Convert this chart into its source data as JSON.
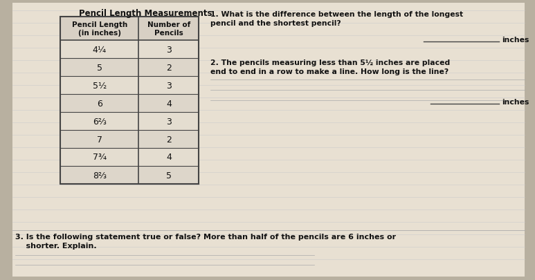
{
  "title": "Pencil Length Measurements",
  "col1_header": "Pencil Length\n(in inches)",
  "col2_header": "Number of\nPencils",
  "table_rows": [
    [
      "4¼",
      "3"
    ],
    [
      "5",
      "2"
    ],
    [
      "5½",
      "3"
    ],
    [
      "6",
      "4"
    ],
    [
      "6⅔",
      "3"
    ],
    [
      "7",
      "2"
    ],
    [
      "7¾",
      "4"
    ],
    [
      "8⅔",
      "5"
    ]
  ],
  "q1_line1": "1. What is the difference between the length of the longest",
  "q1_line2": "pencil and the shortest pencil?",
  "q1_label": "inches",
  "q2_line1": "2. The pencils measuring less than 5½ inches are placed",
  "q2_line2": "end to end in a row to make a line. How long is the line?",
  "q2_label": "inches",
  "q3_line1": "3. Is the following statement true or false? More than half of the pencils are 6 inches or",
  "q3_line2": "    shorter. Explain.",
  "bg_color": "#b8b0a0",
  "paper_color": "#e8e0d2",
  "text_color": "#111111",
  "line_color": "#444444",
  "faint_line_color": "#aaaaaa"
}
